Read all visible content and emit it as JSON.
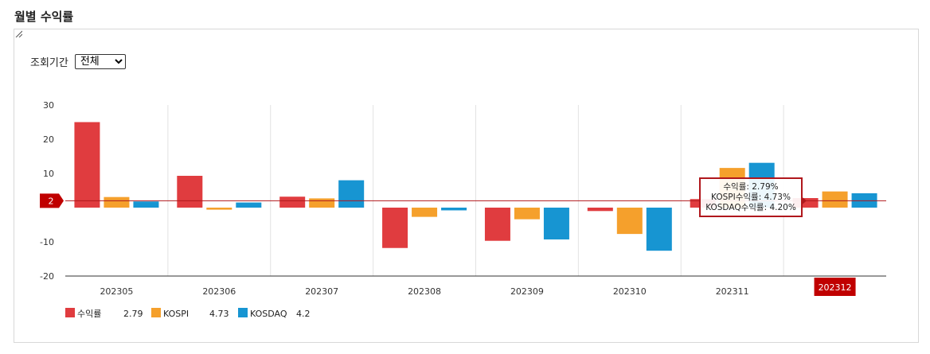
{
  "section_title": "월별 수익률",
  "filter": {
    "label": "조회기간",
    "selected": "전체"
  },
  "colors": {
    "returns": "#e03c3f",
    "kospi": "#f5a02c",
    "kosdaq": "#1795d2",
    "reference": "#b0171c",
    "highlight": "#c00000"
  },
  "chart_data": {
    "type": "bar",
    "categories": [
      "202305",
      "202306",
      "202307",
      "202308",
      "202309",
      "202310",
      "202311",
      "202312"
    ],
    "ylim": [
      -20,
      30
    ],
    "yticks": [
      30,
      20,
      10,
      0,
      -10,
      -20
    ],
    "ytick_labels": [
      "30",
      "20",
      "10",
      "",
      "-10",
      "-20"
    ],
    "series": [
      {
        "name": "수익률",
        "values": [
          25.0,
          9.3,
          3.2,
          -11.8,
          -9.7,
          -1.0,
          2.5,
          2.79
        ]
      },
      {
        "name": "KOSPI",
        "values": [
          3.1,
          -0.6,
          2.7,
          -2.7,
          -3.4,
          -7.7,
          11.6,
          4.73
        ]
      },
      {
        "name": "KOSDAQ",
        "values": [
          1.8,
          1.5,
          8.0,
          -0.8,
          -9.3,
          -12.6,
          13.1,
          4.2
        ]
      }
    ],
    "reference_line": {
      "value": 2,
      "label": "2"
    },
    "highlighted_category": "202312",
    "tooltip": [
      "수익률: 2.79%",
      "KOSPI수익률: 4.73%",
      "KOSDAQ수익률: 4.20%"
    ],
    "legend": [
      {
        "name": "수익률",
        "value": "2.79"
      },
      {
        "name": "KOSPI",
        "value": "4.73"
      },
      {
        "name": "KOSDAQ",
        "value": "4.2"
      }
    ],
    "grid": true,
    "legend_position": "bottom-left"
  }
}
